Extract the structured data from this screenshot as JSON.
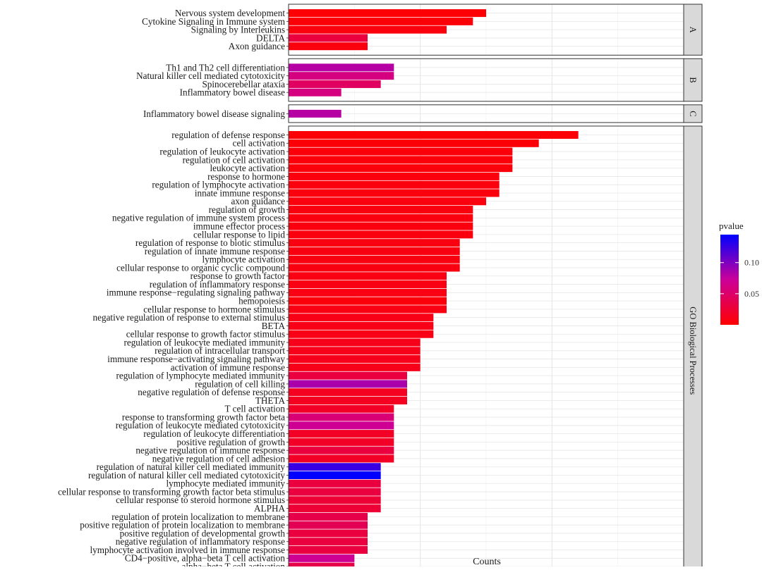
{
  "chart_data": {
    "type": "bar",
    "orientation": "horizontal",
    "xlabel": "Counts",
    "xlim": [
      0,
      30
    ],
    "xticks": [
      0,
      10,
      20,
      30
    ],
    "color_scale": {
      "title": "pvalue",
      "min": 0.0,
      "max": 0.145,
      "ticks": [
        0.05,
        0.1
      ],
      "tick_labels": [
        "0.05",
        "0.10"
      ],
      "low_color": "#ff0000",
      "mid_color": "#cc0099",
      "high_color": "#0000ff"
    },
    "panels": [
      {
        "label": "A",
        "bars": [
          {
            "term": "Nervous system development",
            "count": 15,
            "pvalue": 0.003
          },
          {
            "term": "Cytokine Signaling in Immune system",
            "count": 14,
            "pvalue": 0.004
          },
          {
            "term": "Signaling by Interleukins",
            "count": 12,
            "pvalue": 0.006
          },
          {
            "term": "DELTA",
            "count": 6,
            "pvalue": 0.03
          },
          {
            "term": "Axon guidance",
            "count": 6,
            "pvalue": 0.006
          }
        ]
      },
      {
        "label": "B",
        "bars": [
          {
            "term": "Th1 and Th2 cell differentiation",
            "count": 8,
            "pvalue": 0.08
          },
          {
            "term": "Natural killer cell mediated cytotoxicity",
            "count": 8,
            "pvalue": 0.06
          },
          {
            "term": "Spinocerebellar ataxia",
            "count": 7,
            "pvalue": 0.045
          },
          {
            "term": "Inflammatory bowel disease",
            "count": 4,
            "pvalue": 0.06
          }
        ]
      },
      {
        "label": "C",
        "bars": [
          {
            "term": "Inflammatory bowel disease signaling",
            "count": 4,
            "pvalue": 0.08
          }
        ]
      },
      {
        "label": "GO Biological Processes",
        "bars": [
          {
            "term": "regulation of defense response",
            "count": 22,
            "pvalue": 0.004
          },
          {
            "term": "cell activation",
            "count": 19,
            "pvalue": 0.004
          },
          {
            "term": "regulation of leukocyte activation",
            "count": 17,
            "pvalue": 0.005
          },
          {
            "term": "regulation of cell activation",
            "count": 17,
            "pvalue": 0.005
          },
          {
            "term": "leukocyte activation",
            "count": 17,
            "pvalue": 0.005
          },
          {
            "term": "response to hormone",
            "count": 16,
            "pvalue": 0.006
          },
          {
            "term": "regulation of lymphocyte activation",
            "count": 16,
            "pvalue": 0.006
          },
          {
            "term": "innate immune response",
            "count": 16,
            "pvalue": 0.006
          },
          {
            "term": "axon guidance",
            "count": 15,
            "pvalue": 0.006
          },
          {
            "term": "regulation of growth",
            "count": 14,
            "pvalue": 0.007
          },
          {
            "term": "negative regulation of immune system process",
            "count": 14,
            "pvalue": 0.007
          },
          {
            "term": "immune effector process",
            "count": 14,
            "pvalue": 0.007
          },
          {
            "term": "cellular response to lipid",
            "count": 14,
            "pvalue": 0.007
          },
          {
            "term": "regulation of response to biotic stimulus",
            "count": 13,
            "pvalue": 0.008
          },
          {
            "term": "regulation of innate immune response",
            "count": 13,
            "pvalue": 0.008
          },
          {
            "term": "lymphocyte activation",
            "count": 13,
            "pvalue": 0.008
          },
          {
            "term": "cellular response to organic cyclic compound",
            "count": 13,
            "pvalue": 0.008
          },
          {
            "term": "response to growth factor",
            "count": 12,
            "pvalue": 0.009
          },
          {
            "term": "regulation of inflammatory response",
            "count": 12,
            "pvalue": 0.009
          },
          {
            "term": "immune response−regulating signaling pathway",
            "count": 12,
            "pvalue": 0.009
          },
          {
            "term": "hemopoiesis",
            "count": 12,
            "pvalue": 0.005
          },
          {
            "term": "cellular response to hormone stimulus",
            "count": 12,
            "pvalue": 0.009
          },
          {
            "term": "negative regulation of response to external stimulus",
            "count": 11,
            "pvalue": 0.01
          },
          {
            "term": "BETA",
            "count": 11,
            "pvalue": 0.01
          },
          {
            "term": "cellular response to growth factor stimulus",
            "count": 11,
            "pvalue": 0.01
          },
          {
            "term": "regulation of leukocyte mediated immunity",
            "count": 10,
            "pvalue": 0.012
          },
          {
            "term": "regulation of intracellular transport",
            "count": 10,
            "pvalue": 0.012
          },
          {
            "term": "immune response−activating signaling pathway",
            "count": 10,
            "pvalue": 0.012
          },
          {
            "term": "activation of immune response",
            "count": 10,
            "pvalue": 0.012
          },
          {
            "term": "regulation of lymphocyte mediated immunity",
            "count": 9,
            "pvalue": 0.03
          },
          {
            "term": "regulation of cell killing",
            "count": 9,
            "pvalue": 0.085
          },
          {
            "term": "negative regulation of defense response",
            "count": 9,
            "pvalue": 0.015
          },
          {
            "term": "THETA",
            "count": 9,
            "pvalue": 0.015
          },
          {
            "term": "T cell activation",
            "count": 8,
            "pvalue": 0.018
          },
          {
            "term": "response to transforming growth factor beta",
            "count": 8,
            "pvalue": 0.055
          },
          {
            "term": "regulation of leukocyte mediated cytotoxicity",
            "count": 8,
            "pvalue": 0.07
          },
          {
            "term": "regulation of leukocyte differentiation",
            "count": 8,
            "pvalue": 0.018
          },
          {
            "term": "positive regulation of growth",
            "count": 8,
            "pvalue": 0.018
          },
          {
            "term": "negative regulation of immune response",
            "count": 8,
            "pvalue": 0.03
          },
          {
            "term": "negative regulation of cell adhesion",
            "count": 8,
            "pvalue": 0.018
          },
          {
            "term": "regulation of natural killer cell mediated immunity",
            "count": 7,
            "pvalue": 0.125
          },
          {
            "term": "regulation of natural killer cell mediated cytotoxicity",
            "count": 7,
            "pvalue": 0.145
          },
          {
            "term": "lymphocyte mediated immunity",
            "count": 7,
            "pvalue": 0.03
          },
          {
            "term": "cellular response to transforming growth factor beta stimulus",
            "count": 7,
            "pvalue": 0.03
          },
          {
            "term": "cellular response to steroid hormone stimulus",
            "count": 7,
            "pvalue": 0.025
          },
          {
            "term": "ALPHA",
            "count": 7,
            "pvalue": 0.025
          },
          {
            "term": "regulation of protein localization to membrane",
            "count": 6,
            "pvalue": 0.035
          },
          {
            "term": "positive regulation of protein localization to membrane",
            "count": 6,
            "pvalue": 0.04
          },
          {
            "term": "positive regulation of developmental growth",
            "count": 6,
            "pvalue": 0.03
          },
          {
            "term": "negative regulation of inflammatory response",
            "count": 6,
            "pvalue": 0.03
          },
          {
            "term": "lymphocyte activation involved in immune response",
            "count": 6,
            "pvalue": 0.03
          },
          {
            "term": "CD4−positive, alpha−beta T cell activation",
            "count": 5,
            "pvalue": 0.07
          },
          {
            "term": "alpha−beta T cell activation",
            "count": 5,
            "pvalue": 0.035
          }
        ]
      }
    ]
  }
}
